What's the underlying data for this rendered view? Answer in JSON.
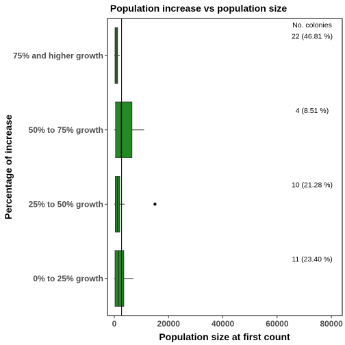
{
  "chart_data": {
    "type": "boxplot",
    "orientation": "horizontal",
    "title": "Population increase vs population size",
    "xlabel": "Population size at first count",
    "ylabel": "Percentage of increase",
    "xlim": [
      -2500,
      84000
    ],
    "x_ticks": [
      0,
      20000,
      40000,
      60000,
      80000
    ],
    "x_tick_labels": [
      "0",
      "20000",
      "40000",
      "60000",
      "80000"
    ],
    "box_color": "#228B22",
    "reference_line_x": 2700,
    "annotation_header": "No. colonies",
    "grid": false,
    "categories": [
      {
        "label": "75% and higher growth",
        "q1": 300,
        "median": 700,
        "q3": 1200,
        "whisker_low": 0,
        "whisker_high": 2000,
        "outliers": [],
        "count_label": "22 (46.81 %)"
      },
      {
        "label": "50% to 75% growth",
        "q1": 500,
        "median": 2500,
        "q3": 6500,
        "whisker_low": 0,
        "whisker_high": 11000,
        "outliers": [],
        "count_label": "4 (8.51 %)"
      },
      {
        "label": "25% to 50% growth",
        "q1": 400,
        "median": 1200,
        "q3": 2000,
        "whisker_low": 0,
        "whisker_high": 3800,
        "outliers": [
          15000
        ],
        "count_label": "10 (21.28 %)"
      },
      {
        "label": "0% to 25% growth",
        "q1": 300,
        "median": 1500,
        "q3": 3500,
        "whisker_low": 0,
        "whisker_high": 7000,
        "outliers": [],
        "count_label": "11 (23.40 %)"
      }
    ]
  }
}
